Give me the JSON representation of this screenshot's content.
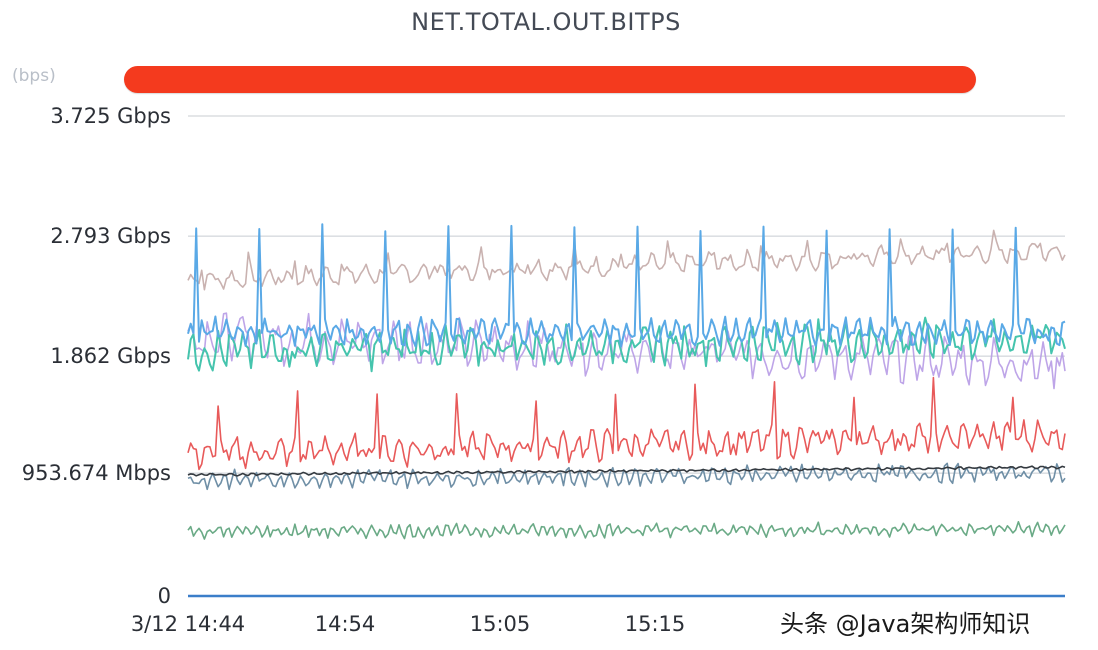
{
  "chart_data": {
    "type": "line",
    "title": "NET.TOTAL.OUT.BITPS",
    "unit_label": "(bps)",
    "y_ticks": [
      "3.725 Gbps",
      "2.793 Gbps",
      "1.862 Gbps",
      "953.674 Mbps",
      "0"
    ],
    "y_tick_values": [
      3.725,
      2.793,
      1.862,
      0.953674,
      0
    ],
    "ylim": [
      0,
      3.725
    ],
    "x_ticks": [
      "3/12 14:44",
      "14:54",
      "15:05",
      "15:15"
    ],
    "x_range": [
      "14:44",
      "15:41"
    ],
    "grid": true,
    "legend": "none",
    "series": [
      {
        "color": "#c9b2b0",
        "base_start": 2.45,
        "base_end": 2.68,
        "amplitude": 0.08,
        "values_gbps": "~2.45 rising to ~2.68"
      },
      {
        "color": "#b79be6",
        "base_start": 2.02,
        "base_end": 1.8,
        "amplitude": 0.18,
        "values_gbps": "~1.6 to ~2.3"
      },
      {
        "color": "#e85a5a",
        "base_start": 1.1,
        "base_end": 1.25,
        "amplitude": 0.12,
        "values_gbps": "~1.0 to ~1.45 with spikes to 2.3"
      },
      {
        "color": "#45c4ad",
        "base_start": 1.9,
        "base_end": 2.0,
        "amplitude": 0.15,
        "values_gbps": "~1.7 to ~2.3"
      },
      {
        "color": "#5aa9e6",
        "base_start": 2.05,
        "base_end": 2.05,
        "amplitude": 0.1,
        "values_gbps": "~1.9 to ~2.2 with periodic spikes to ~2.85"
      },
      {
        "color": "#6f8fa6",
        "base_start": 0.9,
        "base_end": 0.96,
        "amplitude": 0.07,
        "values_gbps": "~0.8 to ~1.05"
      },
      {
        "color": "#343a40",
        "base_start": 0.94,
        "base_end": 1.0,
        "amplitude": 0.01,
        "values_gbps": "~0.95 to ~1.0"
      },
      {
        "color": "#6aaa86",
        "base_start": 0.5,
        "base_end": 0.52,
        "amplitude": 0.05,
        "values_gbps": "~0.45 to ~0.57"
      },
      {
        "color": "#3b7ec9",
        "base_start": 0.0,
        "base_end": 0.0,
        "amplitude": 0.0,
        "values_gbps": "0"
      }
    ]
  },
  "watermark": "头条 @Java架构师知识"
}
